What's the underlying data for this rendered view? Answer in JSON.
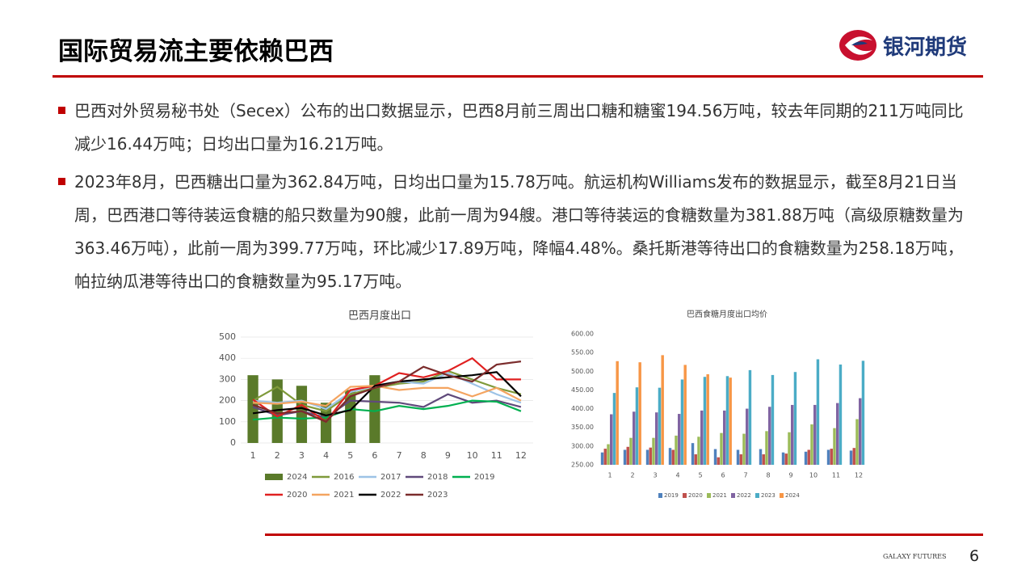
{
  "header": {
    "title": "国际贸易流主要依赖巴西",
    "logo": "银河期货"
  },
  "bullets": [
    "巴西对外贸易秘书处（Secex）公布的出口数据显示，巴西8月前三周出口糖和糖蜜194.56万吨，较去年同期的211万吨同比减少16.44万吨；日均出口量为16.21万吨。",
    "2023年8月，巴西糖出口量为362.84万吨，日均出口量为15.78万吨。航运机构Williams发布的数据显示，截至8月21日当周，巴西港口等待装运食糖的船只数量为90艘，此前一周为94艘。港口等待装运的食糖数量为381.88万吨（高级原糖数量为363.46万吨），此前一周为399.77万吨，环比减少17.89万吨，降幅4.48%。桑托斯港等待出口的食糖数量为258.18万吨，帕拉纳瓜港等待出口的食糖数量为95.17万吨。"
  ],
  "chart_data": [
    {
      "type": "combo",
      "title": "巴西月度出口",
      "categories": [
        "1",
        "2",
        "3",
        "4",
        "5",
        "6",
        "7",
        "8",
        "9",
        "10",
        "11",
        "12"
      ],
      "ylim": [
        0,
        500
      ],
      "yticks": [
        0,
        100,
        200,
        300,
        400,
        500
      ],
      "series": [
        {
          "name": "2024",
          "type": "bar",
          "color": "#5a7a2a",
          "values": [
            320,
            300,
            270,
            190,
            250,
            320,
            null,
            null,
            null,
            null,
            null,
            null
          ]
        },
        {
          "name": "2016",
          "type": "line",
          "color": "#7f9a3a",
          "values": [
            200,
            265,
            180,
            150,
            230,
            260,
            280,
            290,
            340,
            300,
            260,
            230
          ]
        },
        {
          "name": "2017",
          "type": "line",
          "color": "#9dc3e6",
          "values": [
            200,
            190,
            200,
            160,
            240,
            270,
            290,
            280,
            330,
            280,
            230,
            190
          ]
        },
        {
          "name": "2018",
          "type": "line",
          "color": "#604a7b",
          "values": [
            170,
            130,
            150,
            120,
            200,
            195,
            190,
            170,
            230,
            190,
            200,
            170
          ]
        },
        {
          "name": "2019",
          "type": "line",
          "color": "#00b050",
          "values": [
            110,
            120,
            115,
            120,
            160,
            150,
            175,
            160,
            175,
            200,
            195,
            150
          ]
        },
        {
          "name": "2020",
          "type": "line",
          "color": "#e02020",
          "values": [
            205,
            125,
            180,
            100,
            250,
            270,
            330,
            310,
            340,
            400,
            300,
            300
          ]
        },
        {
          "name": "2021",
          "type": "line",
          "color": "#f4a460",
          "values": [
            190,
            185,
            195,
            175,
            265,
            270,
            250,
            260,
            260,
            220,
            260,
            200
          ]
        },
        {
          "name": "2022",
          "type": "line",
          "color": "#000000",
          "values": [
            140,
            155,
            165,
            130,
            155,
            270,
            290,
            300,
            310,
            320,
            335,
            220
          ]
        },
        {
          "name": "2023",
          "type": "line",
          "color": "#7b2c2c",
          "values": [
            180,
            140,
            150,
            100,
            220,
            260,
            290,
            360,
            320,
            290,
            370,
            385
          ]
        }
      ]
    },
    {
      "type": "bar",
      "title": "巴西食糖月度出口均价",
      "categories": [
        "1",
        "2",
        "3",
        "4",
        "5",
        "6",
        "7",
        "8",
        "9",
        "10",
        "11",
        "12"
      ],
      "ylim": [
        250,
        600
      ],
      "yticks": [
        {
          "value": 250,
          "label": "250.00"
        },
        {
          "value": 300,
          "label": "300.00"
        },
        {
          "value": 350,
          "label": "350.00"
        },
        {
          "value": 400,
          "label": "400.00"
        },
        {
          "value": 450,
          "label": "450.00"
        },
        {
          "value": 500,
          "label": "500.00"
        },
        {
          "value": 550,
          "label": "550.00"
        },
        {
          "value": 600,
          "label": "600.00"
        }
      ],
      "series": [
        {
          "name": "2019",
          "color": "#4f81bd",
          "values": [
            283,
            290,
            290,
            295,
            308,
            292,
            290,
            292,
            283,
            285,
            290,
            288
          ]
        },
        {
          "name": "2020",
          "color": "#c0504d",
          "values": [
            293,
            298,
            296,
            290,
            278,
            270,
            278,
            278,
            280,
            290,
            293,
            295
          ]
        },
        {
          "name": "2021",
          "color": "#9bbb59",
          "values": [
            305,
            322,
            322,
            328,
            325,
            335,
            333,
            340,
            337,
            358,
            348,
            372
          ]
        },
        {
          "name": "2022",
          "color": "#8064a2",
          "values": [
            385,
            392,
            390,
            386,
            395,
            395,
            400,
            405,
            410,
            410,
            415,
            428
          ]
        },
        {
          "name": "2023",
          "color": "#4bacc6",
          "values": [
            442,
            457,
            456,
            478,
            485,
            487,
            503,
            490,
            498,
            532,
            518,
            528
          ]
        },
        {
          "name": "2024",
          "color": "#f79646",
          "values": [
            527,
            524,
            543,
            517,
            492,
            483,
            null,
            null,
            null,
            null,
            null,
            null
          ]
        }
      ]
    }
  ],
  "footer": {
    "brand": "GALAXY FUTURES",
    "page": "6"
  }
}
